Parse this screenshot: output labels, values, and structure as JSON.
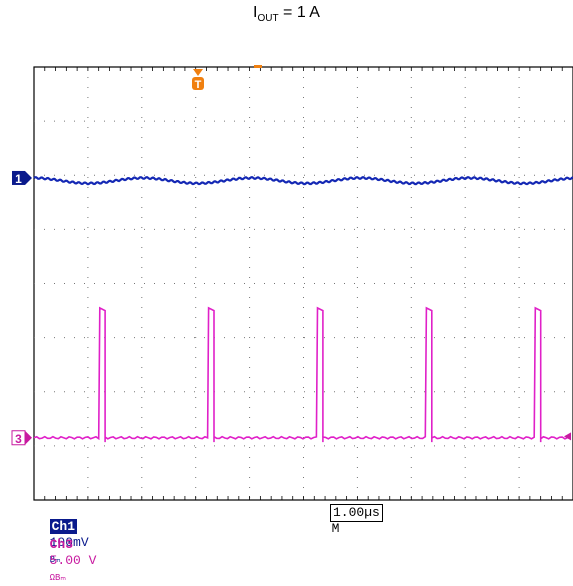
{
  "title": {
    "prefix": "I",
    "sub": "OUT",
    "suffix": " = 1 A"
  },
  "trigger_label": "T",
  "ch1": {
    "tag": "Ch1",
    "scale": "100mV",
    "coupling": "Bₘ",
    "marker": "1",
    "color": "#1428b4"
  },
  "ch3": {
    "tag": "Ch3",
    "scale": "5.00 V",
    "coupling": "ΩBₘ",
    "marker": "3",
    "color": "#e020c8"
  },
  "timebase": {
    "prefix": "M",
    "value": "1.00µs"
  },
  "chart_data": {
    "type": "line",
    "xlabel": "",
    "ylabel": "",
    "grid": true,
    "x_divisions": 10,
    "y_divisions": 8,
    "series": [
      {
        "channel": "Ch1",
        "shape": "ripple",
        "level_div": 5.95,
        "amplitude_div": 0.1,
        "period_div": 2.02,
        "color": "#1428b4"
      },
      {
        "channel": "Ch3",
        "shape": "pulse",
        "low_div": 1.15,
        "high_div": 3.55,
        "period_div": 2.02,
        "pulse_width_div": 0.1,
        "color": "#e020c8"
      }
    ]
  }
}
